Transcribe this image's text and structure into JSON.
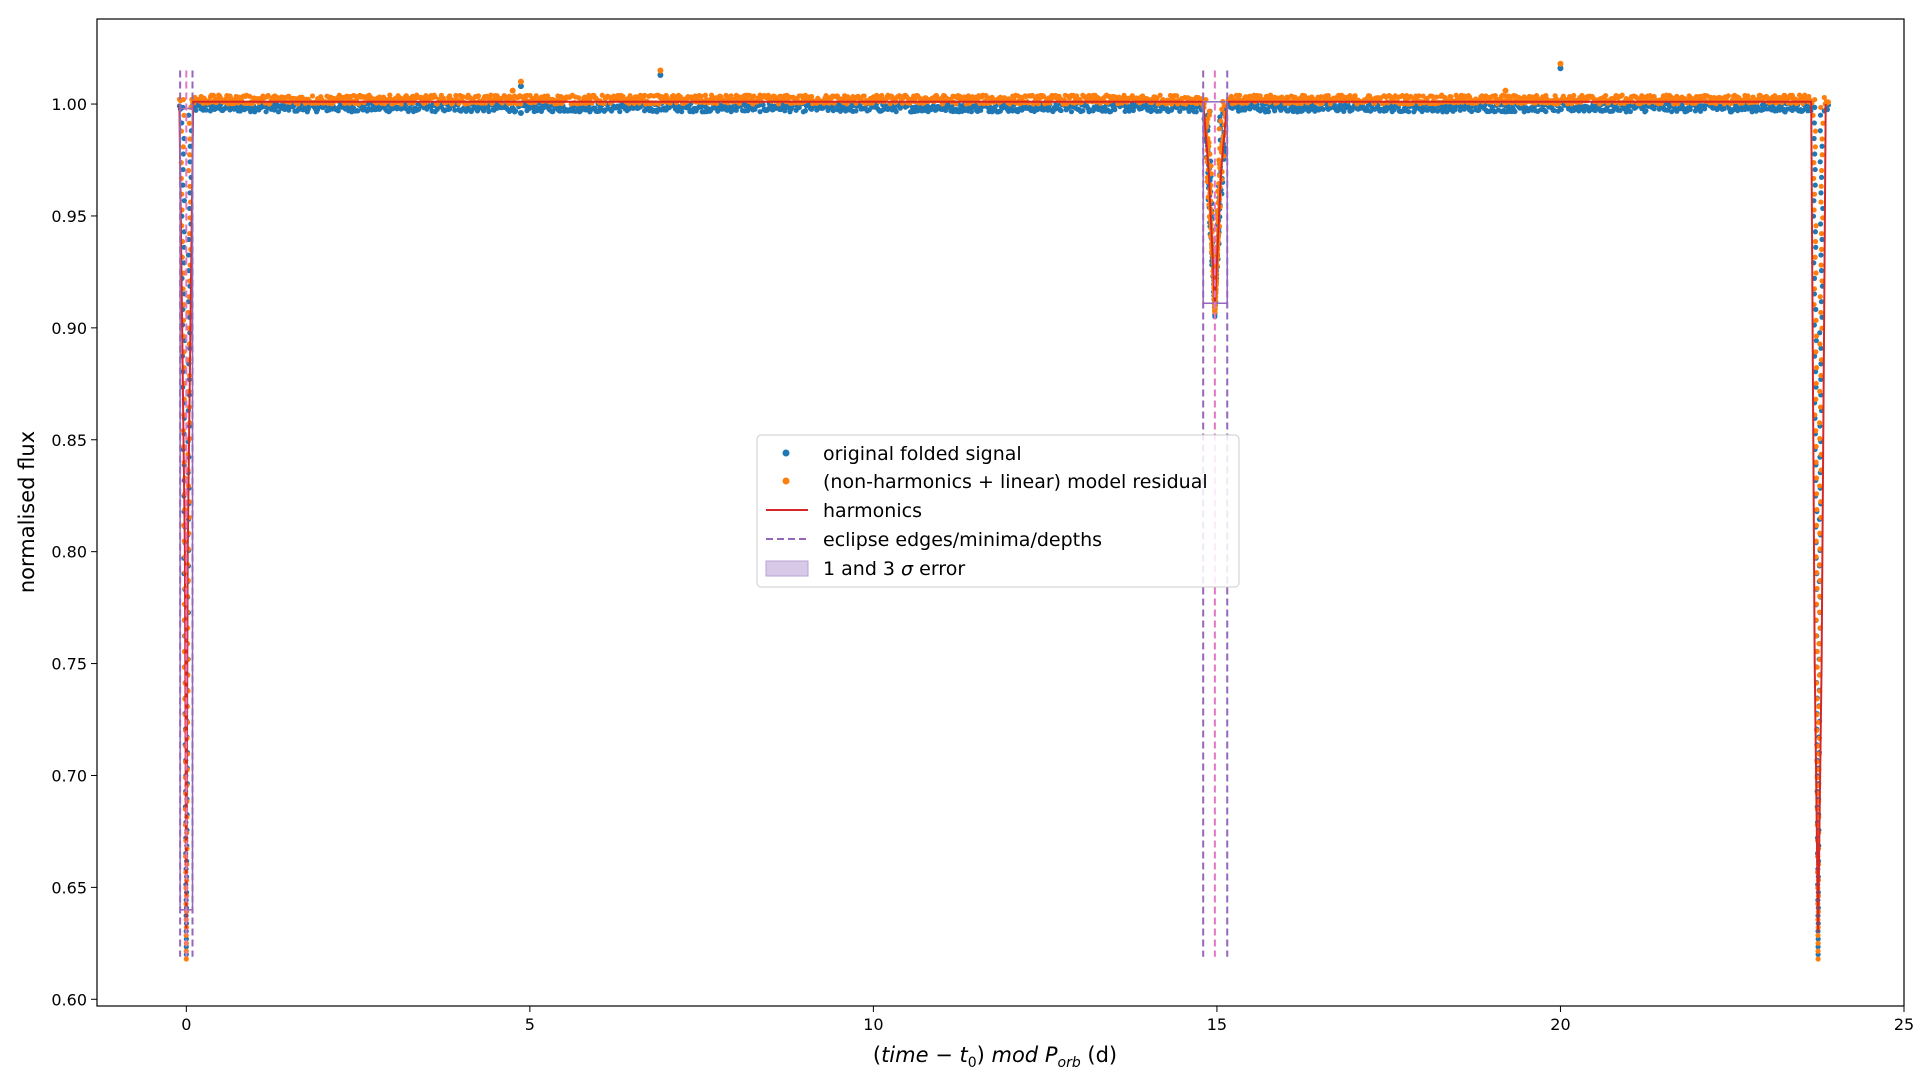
{
  "chart_data": {
    "type": "scatter",
    "title": "",
    "xlabel": "(time − t₀) mod P_orb (d)",
    "xlabel_parts": {
      "time": "time",
      "minus": " − ",
      "t": "t",
      "t_sub": "0",
      "mod": " mod ",
      "P": "P",
      "P_sub": "orb",
      "units": " (d)"
    },
    "ylabel": "normalised flux",
    "xlim": [
      -1.3,
      25.0
    ],
    "ylim": [
      0.597,
      1.038
    ],
    "xticks": [
      0,
      5,
      10,
      15,
      20,
      25
    ],
    "yticks": [
      0.6,
      0.65,
      0.7,
      0.75,
      0.8,
      0.85,
      0.9,
      0.95,
      1.0
    ],
    "ytick_labels": [
      "0.60",
      "0.65",
      "0.70",
      "0.75",
      "0.80",
      "0.85",
      "0.90",
      "0.95",
      "1.00"
    ],
    "grid": false,
    "legend_position": "center",
    "colors": {
      "original": "#1f77b4",
      "residual": "#ff7f0e",
      "harmonics": "#d62728",
      "eclipse": "#9467bd",
      "minima": "#e377c2",
      "error_fill": "#d8c9e8"
    },
    "legend": [
      {
        "label": "original folded signal",
        "kind": "marker",
        "color": "#1f77b4"
      },
      {
        "label": "(non-harmonics + linear) model residual",
        "kind": "marker",
        "color": "#ff7f0e"
      },
      {
        "label": "harmonics",
        "kind": "line",
        "color": "#d62728"
      },
      {
        "label": "eclipse edges/minima/depths",
        "kind": "dashed",
        "color": "#9467bd"
      },
      {
        "label": "1 and 3 σ error",
        "label_prefix": "1 and 3 ",
        "label_sigma": "σ",
        "label_suffix": " error",
        "kind": "patch",
        "color": "#d8c9e8"
      }
    ],
    "series": [
      {
        "name": "original folded signal",
        "baseline": 0.9985,
        "x_range": [
          -0.1,
          23.9
        ],
        "eclipses": [
          {
            "center": 0.0,
            "half_width": 0.08,
            "depth_min": 0.62
          },
          {
            "center": 14.97,
            "half_width": 0.18,
            "depth_min": 0.905
          },
          {
            "center": 23.75,
            "half_width": 0.08,
            "depth_min": 0.62
          }
        ],
        "outliers": [
          {
            "x": 4.87,
            "y": 1.008
          },
          {
            "x": 6.9,
            "y": 1.013
          },
          {
            "x": 20.0,
            "y": 1.016
          },
          {
            "x": 4.87,
            "y": 0.996
          }
        ]
      },
      {
        "name": "(non-harmonics + linear) model residual",
        "baseline": 1.002,
        "x_range": [
          -0.1,
          23.9
        ],
        "eclipses": [
          {
            "center": 0.0,
            "half_width": 0.08,
            "depth_min": 0.618
          },
          {
            "center": 14.97,
            "half_width": 0.18,
            "depth_min": 0.907
          },
          {
            "center": 23.75,
            "half_width": 0.08,
            "depth_min": 0.618
          }
        ],
        "outliers": [
          {
            "x": 4.87,
            "y": 1.01
          },
          {
            "x": 6.9,
            "y": 1.015
          },
          {
            "x": 20.0,
            "y": 1.018
          },
          {
            "x": 4.75,
            "y": 1.006
          },
          {
            "x": 19.2,
            "y": 1.006
          }
        ]
      },
      {
        "name": "harmonics",
        "points": [
          [
            -0.1,
            1.0
          ],
          [
            -0.02,
            0.8
          ],
          [
            0.0,
            0.63
          ],
          [
            0.02,
            0.8
          ],
          [
            0.1,
            1.001
          ],
          [
            14.8,
            1.001
          ],
          [
            14.88,
            0.97
          ],
          [
            14.97,
            0.91
          ],
          [
            15.06,
            0.97
          ],
          [
            15.15,
            1.001
          ],
          [
            23.65,
            1.001
          ],
          [
            23.7,
            0.75
          ],
          [
            23.75,
            0.63
          ],
          [
            23.8,
            0.75
          ],
          [
            23.86,
            1.0
          ]
        ]
      }
    ],
    "eclipse_markers": {
      "edges": [
        -0.09,
        0.09,
        14.8,
        15.15
      ],
      "minima": [
        0.0,
        14.97
      ],
      "depth_boxes": [
        {
          "x0": 14.8,
          "x1": 15.15,
          "y_top": 1.001,
          "y_bottom": 0.911
        },
        {
          "x0": -0.09,
          "x1": 0.09,
          "y_top": 0.998,
          "y_bottom": 0.64
        }
      ],
      "line_top": 1.015,
      "line_bottom": 0.619
    }
  }
}
